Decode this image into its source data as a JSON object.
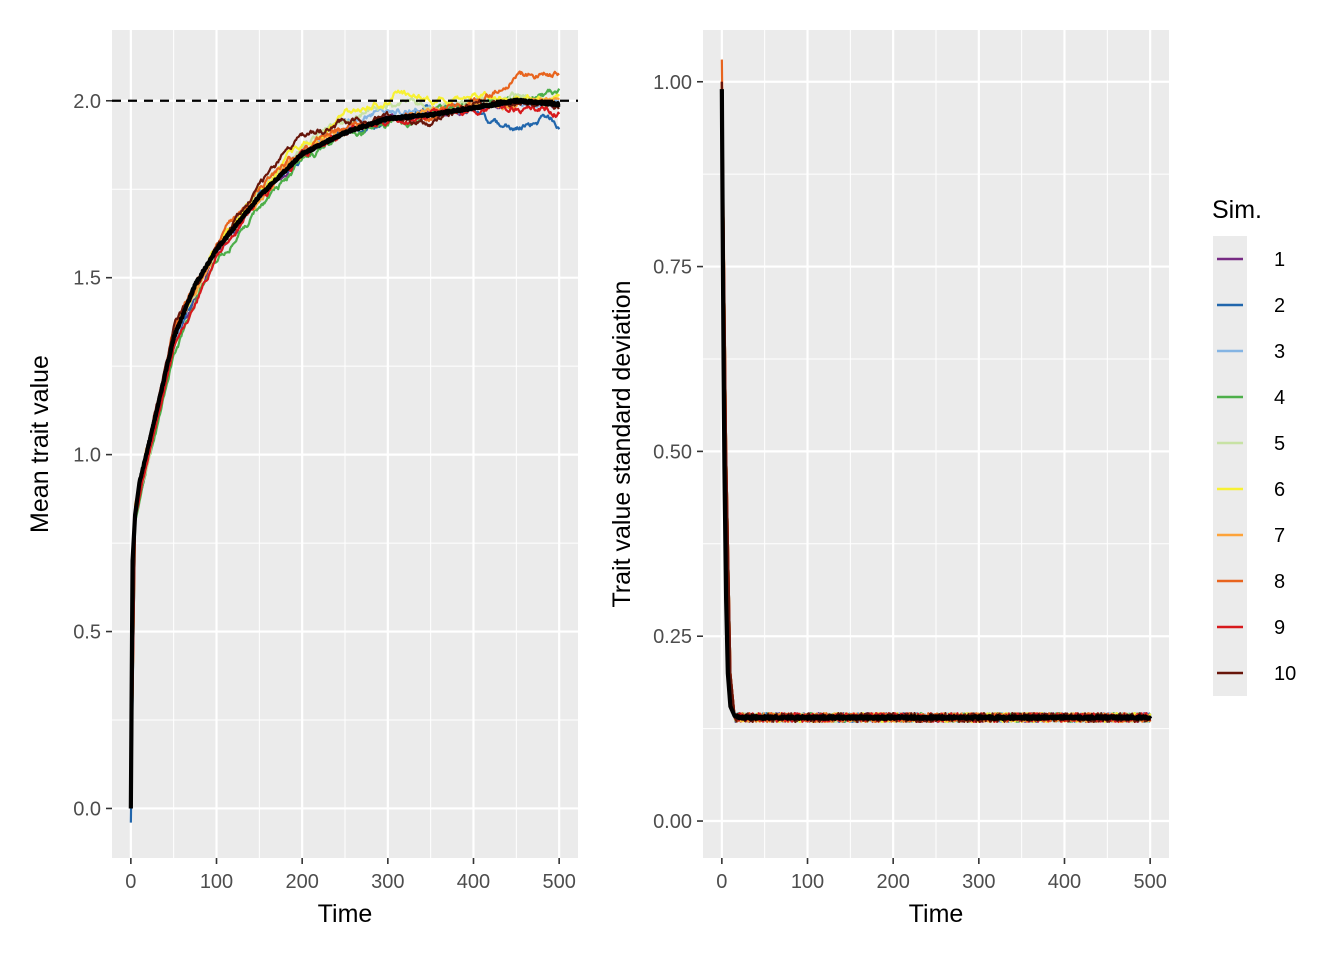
{
  "chart_data": [
    {
      "type": "line",
      "panel": "left",
      "xlabel": "Time",
      "ylabel": "Mean trait value",
      "xlim": [
        -22,
        522
      ],
      "ylim": [
        -0.14,
        2.2
      ],
      "x_ticks": [
        0,
        100,
        200,
        300,
        400,
        500
      ],
      "y_ticks": [
        0.0,
        0.5,
        1.0,
        1.5,
        2.0
      ],
      "x_tick_labels": [
        "0",
        "100",
        "200",
        "300",
        "400",
        "500"
      ],
      "y_tick_labels": [
        "0.0",
        "0.5",
        "1.0",
        "1.5",
        "2.0"
      ],
      "reference_line": {
        "y": 2.0,
        "style": "dashed",
        "color": "#000000"
      },
      "grid": true,
      "series": [
        {
          "name": "1",
          "color": "#762A83",
          "values_at": {
            "x": [
              0,
              5,
              50,
              100,
              150,
              200,
              250,
              300,
              350,
              400,
              450,
              500
            ],
            "y": [
              0.0,
              0.82,
              1.33,
              1.57,
              1.72,
              1.84,
              1.91,
              1.96,
              1.96,
              1.99,
              2.0,
              1.99
            ]
          }
        },
        {
          "name": "2",
          "color": "#2166AC",
          "values_at": {
            "x": [
              0,
              5,
              50,
              100,
              150,
              200,
              250,
              300,
              350,
              400,
              420,
              440,
              460,
              480,
              500
            ],
            "y": [
              -0.04,
              0.83,
              1.31,
              1.57,
              1.73,
              1.85,
              1.92,
              1.95,
              1.97,
              1.98,
              1.93,
              1.92,
              1.93,
              1.95,
              1.93
            ]
          }
        },
        {
          "name": "3",
          "color": "#84B4E3",
          "values_at": {
            "x": [
              0,
              5,
              50,
              100,
              150,
              200,
              250,
              300,
              350,
              400,
              450,
              500
            ],
            "y": [
              0.0,
              0.84,
              1.33,
              1.58,
              1.74,
              1.86,
              1.94,
              1.97,
              1.98,
              1.99,
              2.0,
              2.0
            ]
          }
        },
        {
          "name": "4",
          "color": "#4DAF4A",
          "values_at": {
            "x": [
              0,
              5,
              50,
              100,
              150,
              200,
              250,
              300,
              350,
              400,
              450,
              500
            ],
            "y": [
              0.0,
              0.81,
              1.29,
              1.55,
              1.7,
              1.83,
              1.9,
              1.93,
              1.96,
              1.99,
              2.01,
              2.02
            ]
          }
        },
        {
          "name": "5",
          "color": "#C7E2A4",
          "values_at": {
            "x": [
              0,
              5,
              50,
              100,
              150,
              200,
              250,
              300,
              350,
              400,
              450,
              500
            ],
            "y": [
              0.0,
              0.83,
              1.33,
              1.58,
              1.74,
              1.87,
              1.94,
              1.98,
              1.99,
              2.0,
              2.01,
              2.0
            ]
          }
        },
        {
          "name": "6",
          "color": "#F7F134",
          "values_at": {
            "x": [
              0,
              5,
              50,
              100,
              150,
              200,
              250,
              300,
              310,
              350,
              400,
              450,
              500
            ],
            "y": [
              0.0,
              0.84,
              1.34,
              1.58,
              1.75,
              1.88,
              1.96,
              2.0,
              2.03,
              2.0,
              2.01,
              2.0,
              2.01
            ]
          }
        },
        {
          "name": "7",
          "color": "#FDA33A",
          "values_at": {
            "x": [
              0,
              5,
              50,
              100,
              150,
              200,
              250,
              300,
              350,
              400,
              450,
              500
            ],
            "y": [
              0.0,
              0.86,
              1.34,
              1.58,
              1.73,
              1.85,
              1.92,
              1.95,
              1.97,
              1.98,
              1.99,
              2.0
            ]
          }
        },
        {
          "name": "8",
          "color": "#E8641E",
          "values_at": {
            "x": [
              0,
              5,
              50,
              100,
              150,
              200,
              250,
              300,
              350,
              400,
              430,
              450,
              470,
              490,
              500
            ],
            "y": [
              0.0,
              0.85,
              1.35,
              1.6,
              1.76,
              1.86,
              1.92,
              1.94,
              1.97,
              2.0,
              2.03,
              2.08,
              2.07,
              2.07,
              2.07
            ]
          }
        },
        {
          "name": "9",
          "color": "#D7191C",
          "values_at": {
            "x": [
              0,
              5,
              50,
              100,
              150,
              200,
              250,
              300,
              350,
              400,
              450,
              500
            ],
            "y": [
              0.0,
              0.82,
              1.3,
              1.56,
              1.72,
              1.84,
              1.91,
              1.94,
              1.96,
              1.98,
              1.98,
              1.97
            ]
          }
        },
        {
          "name": "10",
          "color": "#67150A",
          "values_at": {
            "x": [
              0,
              5,
              50,
              100,
              150,
              200,
              250,
              300,
              350,
              400,
              450,
              500
            ],
            "y": [
              0.0,
              0.85,
              1.36,
              1.59,
              1.76,
              1.9,
              1.94,
              1.95,
              1.94,
              1.98,
              2.0,
              1.99
            ]
          }
        }
      ],
      "mean_line": {
        "color": "#000000",
        "values_at": {
          "x": [
            0,
            2,
            5,
            10,
            25,
            50,
            75,
            100,
            150,
            200,
            250,
            300,
            350,
            400,
            450,
            500
          ],
          "y": [
            0.0,
            0.7,
            0.83,
            0.92,
            1.07,
            1.33,
            1.48,
            1.58,
            1.73,
            1.85,
            1.91,
            1.95,
            1.96,
            1.98,
            2.0,
            1.99
          ]
        }
      }
    },
    {
      "type": "line",
      "panel": "right",
      "xlabel": "Time",
      "ylabel": "Trait value standard deviation",
      "xlim": [
        -22,
        522
      ],
      "ylim": [
        -0.05,
        1.07
      ],
      "x_ticks": [
        0,
        100,
        200,
        300,
        400,
        500
      ],
      "y_ticks": [
        0.0,
        0.25,
        0.5,
        0.75,
        1.0
      ],
      "x_tick_labels": [
        "0",
        "100",
        "200",
        "300",
        "400",
        "500"
      ],
      "y_tick_labels": [
        "0.00",
        "0.25",
        "0.50",
        "0.75",
        "1.00"
      ],
      "grid": true,
      "series": [
        {
          "name": "1",
          "color": "#762A83",
          "values_at": {
            "x": [
              0,
              5,
              10,
              15,
              500
            ],
            "y": [
              1.0,
              0.5,
              0.2,
              0.14,
              0.14
            ]
          }
        },
        {
          "name": "2",
          "color": "#2166AC",
          "values_at": {
            "x": [
              0,
              5,
              10,
              15,
              500
            ],
            "y": [
              1.0,
              0.5,
              0.2,
              0.14,
              0.14
            ]
          }
        },
        {
          "name": "3",
          "color": "#84B4E3",
          "values_at": {
            "x": [
              0,
              5,
              10,
              15,
              500
            ],
            "y": [
              1.0,
              0.5,
              0.2,
              0.14,
              0.14
            ]
          }
        },
        {
          "name": "4",
          "color": "#4DAF4A",
          "values_at": {
            "x": [
              0,
              5,
              10,
              15,
              500
            ],
            "y": [
              1.0,
              0.5,
              0.2,
              0.14,
              0.14
            ]
          }
        },
        {
          "name": "5",
          "color": "#C7E2A4",
          "values_at": {
            "x": [
              0,
              5,
              10,
              15,
              500
            ],
            "y": [
              1.0,
              0.5,
              0.2,
              0.14,
              0.14
            ]
          }
        },
        {
          "name": "6",
          "color": "#F7F134",
          "values_at": {
            "x": [
              0,
              5,
              10,
              15,
              500
            ],
            "y": [
              1.0,
              0.5,
              0.2,
              0.14,
              0.14
            ]
          }
        },
        {
          "name": "7",
          "color": "#FDA33A",
          "values_at": {
            "x": [
              0,
              5,
              10,
              15,
              500
            ],
            "y": [
              1.0,
              0.5,
              0.2,
              0.14,
              0.14
            ]
          }
        },
        {
          "name": "8",
          "color": "#E8641E",
          "values_at": {
            "x": [
              0,
              5,
              10,
              15,
              500
            ],
            "y": [
              1.03,
              0.5,
              0.2,
              0.14,
              0.14
            ]
          }
        },
        {
          "name": "9",
          "color": "#D7191C",
          "values_at": {
            "x": [
              0,
              5,
              10,
              15,
              500
            ],
            "y": [
              1.0,
              0.5,
              0.2,
              0.14,
              0.14
            ]
          }
        },
        {
          "name": "10",
          "color": "#67150A",
          "values_at": {
            "x": [
              0,
              5,
              10,
              15,
              500
            ],
            "y": [
              1.0,
              0.5,
              0.2,
              0.14,
              0.14
            ]
          }
        }
      ],
      "mean_line": {
        "color": "#000000",
        "values_at": {
          "x": [
            0,
            1,
            2,
            3,
            5,
            7,
            10,
            15,
            20,
            500
          ],
          "y": [
            0.99,
            0.8,
            0.62,
            0.48,
            0.3,
            0.2,
            0.155,
            0.142,
            0.14,
            0.14
          ]
        }
      }
    }
  ],
  "legend": {
    "title": "Sim.",
    "placement": "right",
    "entries": [
      {
        "label": "1",
        "color": "#762A83"
      },
      {
        "label": "2",
        "color": "#2166AC"
      },
      {
        "label": "3",
        "color": "#84B4E3"
      },
      {
        "label": "4",
        "color": "#4DAF4A"
      },
      {
        "label": "5",
        "color": "#C7E2A4"
      },
      {
        "label": "6",
        "color": "#F7F134"
      },
      {
        "label": "7",
        "color": "#FDA33A"
      },
      {
        "label": "8",
        "color": "#E8641E"
      },
      {
        "label": "9",
        "color": "#D7191C"
      },
      {
        "label": "10",
        "color": "#67150A"
      }
    ]
  }
}
